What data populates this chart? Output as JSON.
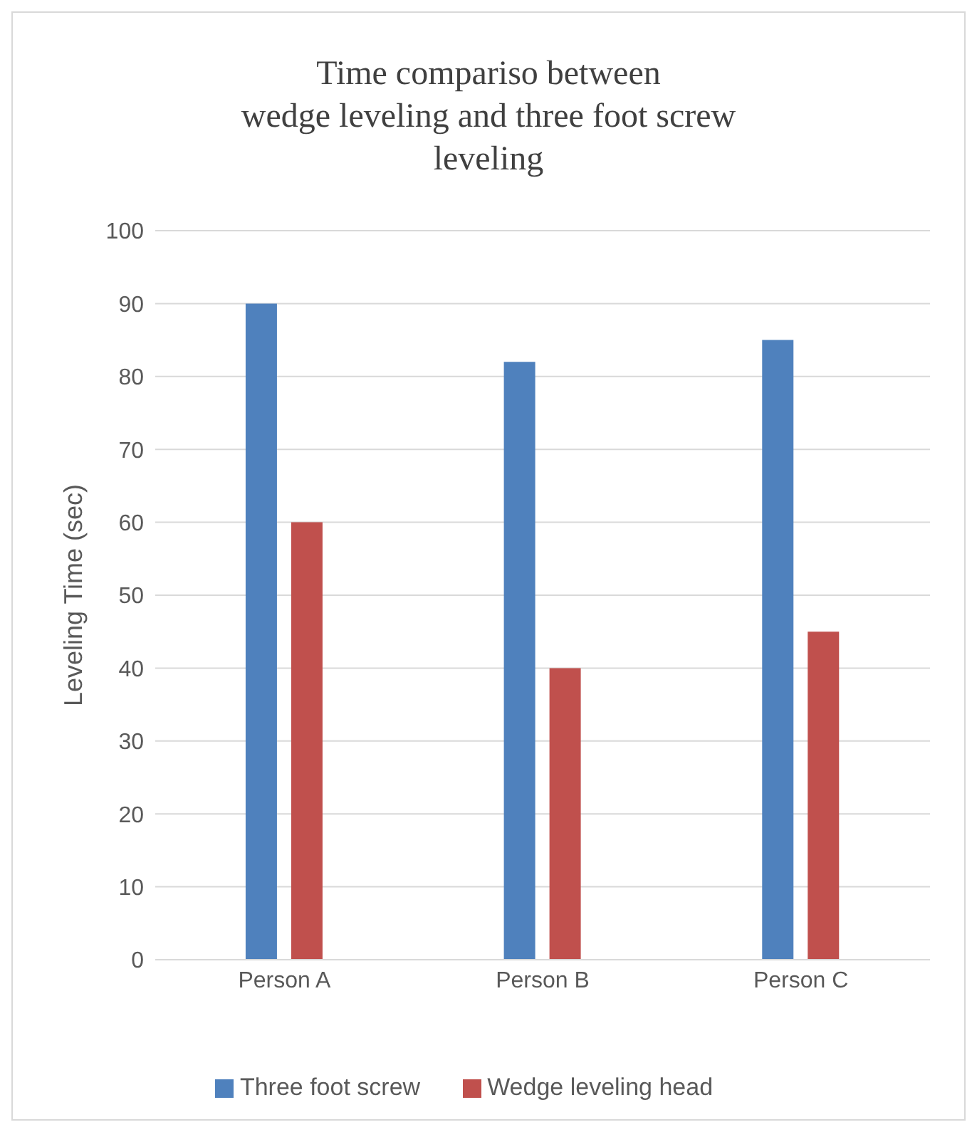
{
  "chart_data": {
    "type": "bar",
    "title": "Time compariso between\nwedge leveling and three foot screw\nleveling",
    "ylabel": "Leveling Time (sec)",
    "categories": [
      "Person A",
      "Person B",
      "Person C"
    ],
    "series": [
      {
        "name": "Three foot screw",
        "color": "#4f81bd",
        "values": [
          90,
          82,
          85
        ]
      },
      {
        "name": "Wedge leveling head",
        "color": "#c0504d",
        "values": [
          60,
          40,
          45
        ]
      }
    ],
    "ylim": [
      0,
      100
    ],
    "yticks": [
      0,
      10,
      20,
      30,
      40,
      50,
      60,
      70,
      80,
      90,
      100
    ],
    "grid": "y",
    "legend": "bottom"
  }
}
